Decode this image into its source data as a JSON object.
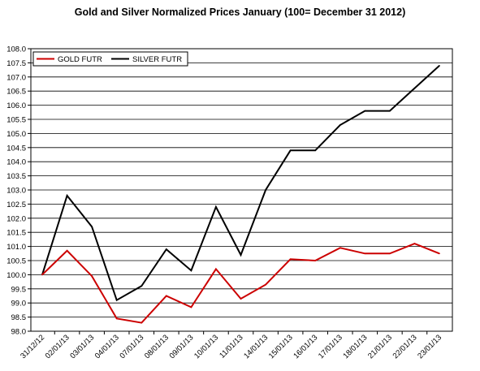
{
  "chart_data": {
    "type": "line",
    "title": "Gold and Silver Normalized Prices January (100= December 31 2012)",
    "xlabel": "",
    "ylabel": "",
    "ylim": [
      98.0,
      108.0
    ],
    "y_ticks": [
      "98.0",
      "98.5",
      "99.0",
      "99.5",
      "100.0",
      "100.5",
      "101.0",
      "101.5",
      "102.0",
      "102.5",
      "103.0",
      "103.5",
      "104.0",
      "104.5",
      "105.0",
      "105.5",
      "106.0",
      "106.5",
      "107.0",
      "107.5",
      "108.0"
    ],
    "categories": [
      "31/12/12",
      "02/01/13",
      "03/01/13",
      "04/01/13",
      "07/01/13",
      "08/01/13",
      "09/01/13",
      "10/01/13",
      "11/01/13",
      "14/01/13",
      "15/01/13",
      "16/01/13",
      "17/01/13",
      "18/01/13",
      "21/01/13",
      "22/01/13",
      "23/01/13"
    ],
    "series": [
      {
        "name": "GOLD FUTR",
        "color": "#cc0000",
        "values": [
          100.0,
          100.85,
          99.95,
          98.45,
          98.3,
          99.25,
          98.85,
          100.2,
          99.15,
          99.65,
          100.55,
          100.5,
          100.95,
          100.75,
          100.75,
          101.1,
          100.75
        ]
      },
      {
        "name": "SILVER FUTR",
        "color": "#000000",
        "values": [
          100.0,
          102.8,
          101.7,
          99.1,
          99.6,
          100.9,
          100.15,
          102.4,
          100.7,
          103.0,
          104.4,
          104.4,
          105.3,
          105.8,
          105.8,
          106.6,
          107.4
        ]
      }
    ],
    "grid": "horizontal",
    "legend_position": "top-left"
  }
}
